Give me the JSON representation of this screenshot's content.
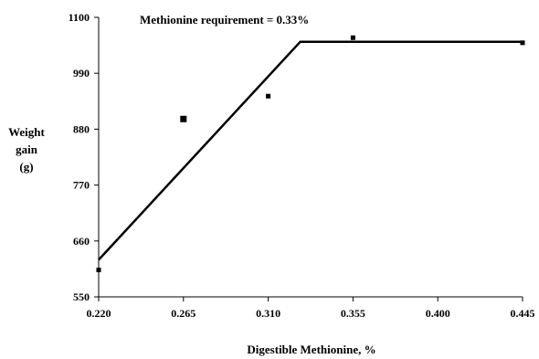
{
  "chart_data": {
    "type": "scatter",
    "title": "",
    "annotation": "Methionine requirement = 0.33%",
    "xlabel": "Digestible Methionine, %",
    "ylabel": [
      "Weight",
      "gain",
      "(g)"
    ],
    "xlim": [
      0.22,
      0.445
    ],
    "ylim": [
      550,
      1100
    ],
    "x_ticks": [
      "0.220",
      "0.265",
      "0.310",
      "0.355",
      "0.400",
      "0.445"
    ],
    "y_ticks": [
      "550",
      "660",
      "770",
      "880",
      "990",
      "1100"
    ],
    "grid": false,
    "series": [
      {
        "type": "scatter",
        "points": [
          {
            "x": 0.22,
            "y": 603
          },
          {
            "x": 0.265,
            "y": 900
          },
          {
            "x": 0.31,
            "y": 945
          },
          {
            "x": 0.355,
            "y": 1060
          },
          {
            "x": 0.445,
            "y": 1050
          }
        ]
      },
      {
        "type": "broken-line",
        "points": [
          {
            "x": 0.22,
            "y": 623
          },
          {
            "x": 0.327,
            "y": 1052
          },
          {
            "x": 0.445,
            "y": 1052
          }
        ]
      }
    ]
  }
}
